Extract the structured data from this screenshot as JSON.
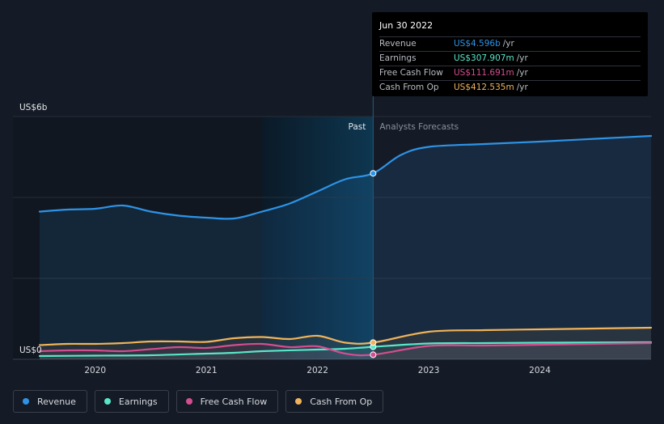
{
  "chart_data": {
    "type": "area",
    "y_axis": {
      "top_label": "US$6b",
      "bottom_label": "US$0",
      "ylim": [
        0,
        6
      ]
    },
    "x_ticks": [
      {
        "label": "2020",
        "value": 2020.0
      },
      {
        "label": "2021",
        "value": 2021.0
      },
      {
        "label": "2022",
        "value": 2022.0
      },
      {
        "label": "2023",
        "value": 2023.0
      },
      {
        "label": "2024",
        "value": 2024.0
      }
    ],
    "x_range": [
      2019.6,
      2025.1
    ],
    "past_label": "Past",
    "forecast_label": "Analysts Forecasts",
    "divider_x": 2022.5,
    "highlight_start_x": 2021.5,
    "series": [
      {
        "name": "Revenue",
        "color": "#2e93e6",
        "points": [
          [
            2019.5,
            3.65
          ],
          [
            2019.75,
            3.7
          ],
          [
            2020.0,
            3.72
          ],
          [
            2020.25,
            3.8
          ],
          [
            2020.5,
            3.65
          ],
          [
            2020.75,
            3.55
          ],
          [
            2021.0,
            3.5
          ],
          [
            2021.25,
            3.48
          ],
          [
            2021.5,
            3.65
          ],
          [
            2021.75,
            3.85
          ],
          [
            2022.0,
            4.15
          ],
          [
            2022.25,
            4.45
          ],
          [
            2022.5,
            4.596
          ],
          [
            2022.75,
            5.05
          ],
          [
            2023.0,
            5.25
          ],
          [
            2023.5,
            5.32
          ],
          [
            2024.0,
            5.38
          ],
          [
            2024.5,
            5.45
          ],
          [
            2025.0,
            5.52
          ]
        ]
      },
      {
        "name": "Earnings",
        "color": "#58e6c9",
        "points": [
          [
            2019.5,
            0.08
          ],
          [
            2020.0,
            0.09
          ],
          [
            2020.5,
            0.1
          ],
          [
            2021.0,
            0.14
          ],
          [
            2021.25,
            0.16
          ],
          [
            2021.5,
            0.2
          ],
          [
            2022.0,
            0.24
          ],
          [
            2022.25,
            0.26
          ],
          [
            2022.5,
            0.308
          ],
          [
            2023.0,
            0.39
          ],
          [
            2023.5,
            0.4
          ],
          [
            2024.0,
            0.41
          ],
          [
            2025.0,
            0.42
          ]
        ]
      },
      {
        "name": "Free Cash Flow",
        "color": "#d34e8e",
        "points": [
          [
            2019.5,
            0.2
          ],
          [
            2019.75,
            0.22
          ],
          [
            2020.0,
            0.22
          ],
          [
            2020.25,
            0.2
          ],
          [
            2020.5,
            0.25
          ],
          [
            2020.75,
            0.3
          ],
          [
            2021.0,
            0.28
          ],
          [
            2021.25,
            0.35
          ],
          [
            2021.5,
            0.38
          ],
          [
            2021.75,
            0.3
          ],
          [
            2022.0,
            0.32
          ],
          [
            2022.25,
            0.14
          ],
          [
            2022.5,
            0.112
          ],
          [
            2023.0,
            0.33
          ],
          [
            2023.5,
            0.34
          ],
          [
            2024.0,
            0.36
          ],
          [
            2024.5,
            0.38
          ],
          [
            2025.0,
            0.4
          ]
        ]
      },
      {
        "name": "Cash From Op",
        "color": "#f0b35a",
        "points": [
          [
            2019.5,
            0.35
          ],
          [
            2019.75,
            0.38
          ],
          [
            2020.0,
            0.38
          ],
          [
            2020.25,
            0.4
          ],
          [
            2020.5,
            0.44
          ],
          [
            2020.75,
            0.44
          ],
          [
            2021.0,
            0.43
          ],
          [
            2021.25,
            0.52
          ],
          [
            2021.5,
            0.55
          ],
          [
            2021.75,
            0.5
          ],
          [
            2022.0,
            0.58
          ],
          [
            2022.25,
            0.41
          ],
          [
            2022.5,
            0.413
          ],
          [
            2023.0,
            0.68
          ],
          [
            2023.5,
            0.72
          ],
          [
            2024.0,
            0.74
          ],
          [
            2024.5,
            0.76
          ],
          [
            2025.0,
            0.78
          ]
        ]
      }
    ]
  },
  "tooltip": {
    "date": "Jun 30 2022",
    "rows": [
      {
        "label": "Revenue",
        "value": "US$4.596b",
        "unit": "/yr",
        "color": "#2e93e6"
      },
      {
        "label": "Earnings",
        "value": "US$307.907m",
        "unit": "/yr",
        "color": "#58e6c9"
      },
      {
        "label": "Free Cash Flow",
        "value": "US$111.691m",
        "unit": "/yr",
        "color": "#d34e8e"
      },
      {
        "label": "Cash From Op",
        "value": "US$412.535m",
        "unit": "/yr",
        "color": "#f0b35a"
      }
    ]
  },
  "legend": [
    {
      "label": "Revenue",
      "color": "#2e93e6"
    },
    {
      "label": "Earnings",
      "color": "#58e6c9"
    },
    {
      "label": "Free Cash Flow",
      "color": "#d34e8e"
    },
    {
      "label": "Cash From Op",
      "color": "#f0b35a"
    }
  ]
}
